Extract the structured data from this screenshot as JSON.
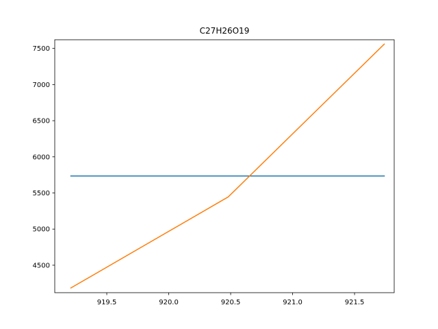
{
  "chart_data": {
    "type": "line",
    "title": "C27H26O19",
    "xlabel": "",
    "ylabel": "",
    "xlim": [
      919.08,
      921.82
    ],
    "ylim": [
      4120,
      7620
    ],
    "x_ticks": [
      919.5,
      920.0,
      920.5,
      921.0,
      921.5
    ],
    "x_tick_labels": [
      "919.5",
      "920.0",
      "920.5",
      "921.0",
      "921.5"
    ],
    "y_ticks": [
      4500,
      5000,
      5500,
      6000,
      6500,
      7000,
      7500
    ],
    "y_tick_labels": [
      "4500",
      "5000",
      "5500",
      "6000",
      "6500",
      "7000",
      "7500"
    ],
    "grid": false,
    "series": [
      {
        "color": "#1f77b4",
        "x": [
          919.21,
          921.74
        ],
        "y": [
          5735,
          5735
        ]
      },
      {
        "color": "#ff7f0e",
        "x": [
          919.21,
          920.48,
          921.74
        ],
        "y": [
          4185,
          5445,
          7560
        ]
      }
    ]
  }
}
